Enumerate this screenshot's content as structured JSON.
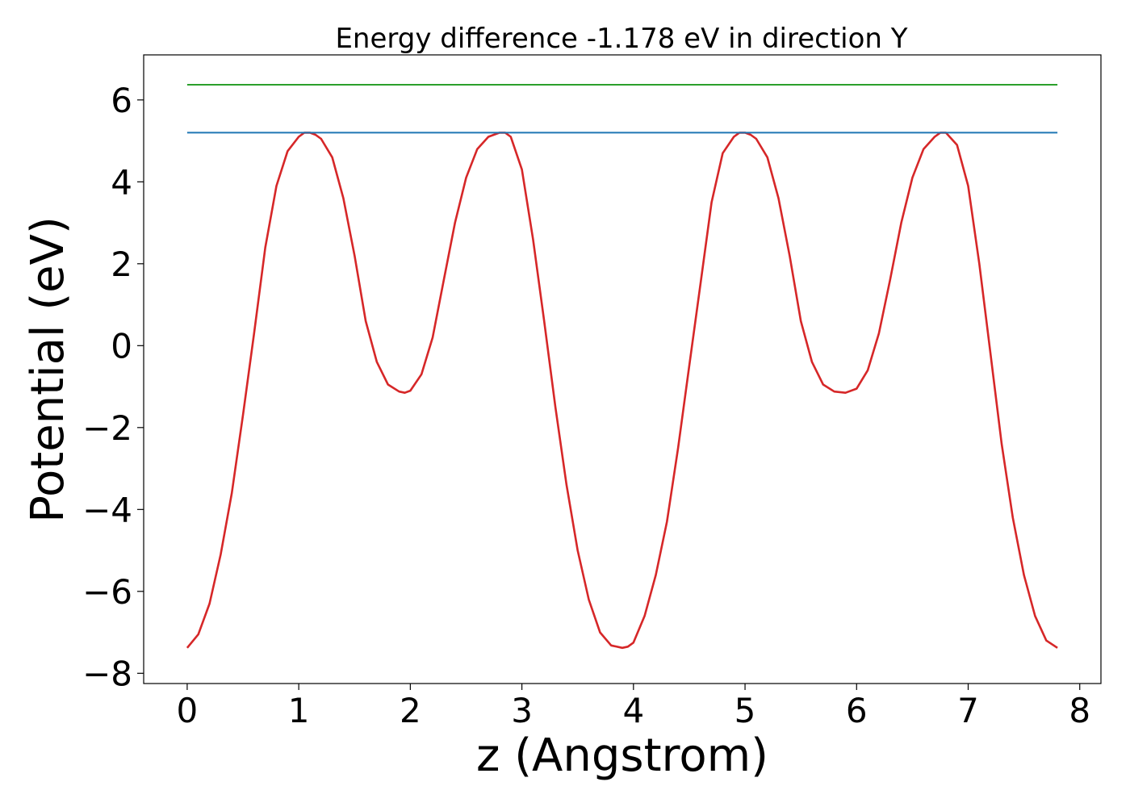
{
  "chart_data": {
    "type": "line",
    "title": "Energy difference -1.178 eV in direction Y",
    "xlabel": "z (Angstrom)",
    "ylabel": "Potential (eV)",
    "xlim": [
      -0.39,
      8.19
    ],
    "ylim": [
      -8.25,
      7.1
    ],
    "xticks": [
      0,
      1,
      2,
      3,
      4,
      5,
      6,
      7,
      8
    ],
    "xtick_labels": [
      "0",
      "1",
      "2",
      "3",
      "4",
      "5",
      "6",
      "7",
      "8"
    ],
    "yticks": [
      -8,
      -6,
      -4,
      -2,
      0,
      2,
      4,
      6
    ],
    "ytick_labels": [
      "−8",
      "−6",
      "−4",
      "−2",
      "0",
      "2",
      "4",
      "6"
    ],
    "grid": false,
    "legend": false,
    "series": [
      {
        "color": "#d62728",
        "x": [
          0.0,
          0.1,
          0.2,
          0.3,
          0.4,
          0.5,
          0.6,
          0.7,
          0.8,
          0.9,
          1.0,
          1.05,
          1.1,
          1.15,
          1.2,
          1.3,
          1.4,
          1.5,
          1.6,
          1.7,
          1.8,
          1.9,
          1.95,
          2.0,
          2.1,
          2.2,
          2.3,
          2.4,
          2.5,
          2.6,
          2.7,
          2.8,
          2.85,
          2.9,
          3.0,
          3.1,
          3.2,
          3.3,
          3.4,
          3.5,
          3.6,
          3.7,
          3.8,
          3.9,
          3.95,
          4.0,
          4.1,
          4.2,
          4.3,
          4.4,
          4.5,
          4.6,
          4.7,
          4.8,
          4.9,
          4.95,
          5.0,
          5.05,
          5.1,
          5.2,
          5.3,
          5.4,
          5.5,
          5.6,
          5.7,
          5.8,
          5.9,
          6.0,
          6.1,
          6.2,
          6.3,
          6.4,
          6.5,
          6.6,
          6.7,
          6.75,
          6.8,
          6.9,
          7.0,
          7.1,
          7.2,
          7.3,
          7.4,
          7.5,
          7.6,
          7.7,
          7.8
        ],
        "y": [
          -7.38,
          -7.05,
          -6.3,
          -5.1,
          -3.6,
          -1.7,
          0.3,
          2.4,
          3.9,
          4.75,
          5.1,
          5.2,
          5.2,
          5.15,
          5.05,
          4.6,
          3.6,
          2.2,
          0.6,
          -0.4,
          -0.95,
          -1.12,
          -1.15,
          -1.1,
          -0.7,
          0.2,
          1.6,
          3.0,
          4.1,
          4.8,
          5.1,
          5.2,
          5.2,
          5.1,
          4.3,
          2.6,
          0.6,
          -1.5,
          -3.4,
          -5.0,
          -6.2,
          -7.0,
          -7.32,
          -7.38,
          -7.35,
          -7.25,
          -6.6,
          -5.6,
          -4.3,
          -2.5,
          -0.5,
          1.5,
          3.5,
          4.7,
          5.1,
          5.2,
          5.2,
          5.15,
          5.05,
          4.6,
          3.6,
          2.2,
          0.6,
          -0.4,
          -0.95,
          -1.12,
          -1.15,
          -1.05,
          -0.6,
          0.3,
          1.6,
          3.0,
          4.1,
          4.8,
          5.1,
          5.2,
          5.2,
          4.9,
          3.9,
          2.0,
          -0.2,
          -2.4,
          -4.2,
          -5.6,
          -6.6,
          -7.2,
          -7.38
        ]
      },
      {
        "color": "#1f77b4",
        "x": [
          0.0,
          7.8
        ],
        "y": [
          5.2,
          5.2
        ]
      },
      {
        "color": "#2ca02c",
        "x": [
          0.0,
          7.8
        ],
        "y": [
          6.37,
          6.37
        ]
      }
    ]
  }
}
